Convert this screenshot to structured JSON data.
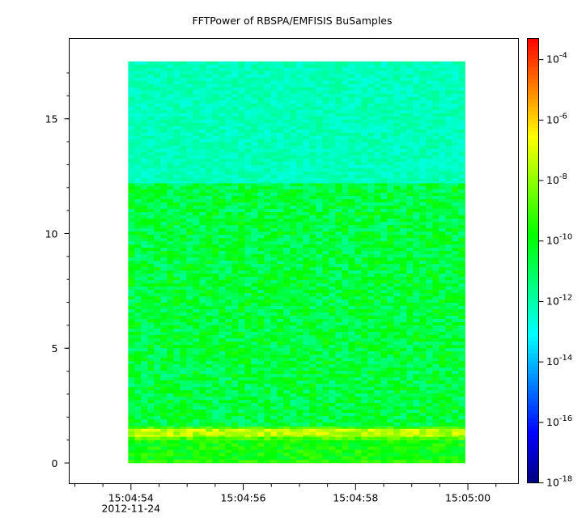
{
  "chart_data": {
    "type": "heatmap",
    "title": "FFTPower of RBSPA/EMFISIS  BuSamples",
    "xlabel": "",
    "ylabel": "",
    "x_ticks": [
      "15:04:54",
      "15:04:56",
      "15:04:58",
      "15:05:00"
    ],
    "x_tick_values": [
      54,
      56,
      58,
      60
    ],
    "x_sublabel": "2012-11-24",
    "xlim": [
      52.9,
      60.9
    ],
    "y_ticks": [
      "0",
      "5",
      "10",
      "15"
    ],
    "y_tick_values": [
      0,
      5,
      10,
      15
    ],
    "ylim": [
      -0.9,
      18.5
    ],
    "data_extent": {
      "x": [
        53.95,
        59.95
      ],
      "y": [
        0,
        17.5
      ]
    },
    "colorbar": {
      "scale": "log",
      "range_exponent": [
        -18,
        -3.3
      ],
      "tick_exponents": [
        -4,
        -6,
        -8,
        -10,
        -12,
        -14,
        -16,
        -18
      ],
      "tick_base": "10",
      "colors": [
        "#00007f",
        "#0000ff",
        "#0080ff",
        "#00ffff",
        "#00ff80",
        "#00ff00",
        "#80ff00",
        "#ffff00",
        "#ff8000",
        "#ff0000"
      ]
    },
    "bands": [
      {
        "y": [
          0.0,
          0.15
        ],
        "log_power": -9.3,
        "spread": 0.6
      },
      {
        "y": [
          0.15,
          1.0
        ],
        "log_power": -9.8,
        "spread": 0.9
      },
      {
        "y": [
          1.0,
          1.15
        ],
        "log_power": -8.8,
        "spread": 0.7
      },
      {
        "y": [
          1.15,
          1.5
        ],
        "log_power": -7.5,
        "spread": 0.9
      },
      {
        "y": [
          1.5,
          1.6
        ],
        "log_power": -8.9,
        "spread": 0.6
      },
      {
        "y": [
          1.6,
          12.2
        ],
        "log_power": -10.6,
        "spread": 1.1
      },
      {
        "y": [
          12.2,
          17.5
        ],
        "log_power": -12.2,
        "spread": 0.5
      }
    ]
  }
}
